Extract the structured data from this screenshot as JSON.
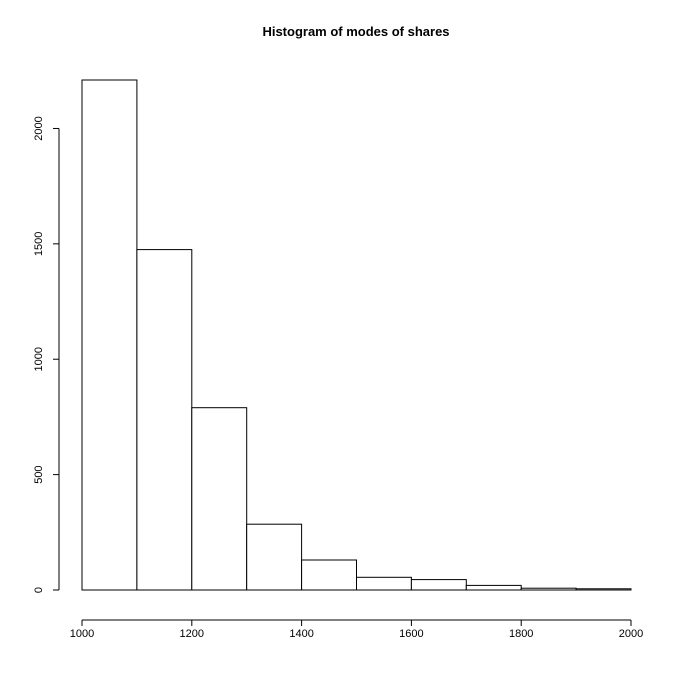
{
  "chart_data": {
    "type": "bar",
    "subtype": "histogram",
    "title": "Histogram of modes of shares",
    "xlabel": "",
    "ylabel": "",
    "bins": [
      {
        "start": 1000,
        "end": 1100,
        "count": 2210
      },
      {
        "start": 1100,
        "end": 1200,
        "count": 1475
      },
      {
        "start": 1200,
        "end": 1300,
        "count": 790
      },
      {
        "start": 1300,
        "end": 1400,
        "count": 285
      },
      {
        "start": 1400,
        "end": 1500,
        "count": 130
      },
      {
        "start": 1500,
        "end": 1600,
        "count": 55
      },
      {
        "start": 1600,
        "end": 1700,
        "count": 45
      },
      {
        "start": 1700,
        "end": 1800,
        "count": 20
      },
      {
        "start": 1800,
        "end": 1900,
        "count": 8
      },
      {
        "start": 1900,
        "end": 2000,
        "count": 5
      }
    ],
    "xlim": [
      1000,
      2000
    ],
    "ylim": [
      0,
      2210
    ],
    "x_ticks": [
      1000,
      1200,
      1400,
      1600,
      1800,
      2000
    ],
    "y_ticks": [
      0,
      500,
      1000,
      1500,
      2000
    ],
    "x_tick_labels": [
      "1000",
      "1200",
      "1400",
      "1600",
      "1800",
      "2000"
    ],
    "y_tick_labels": [
      "0",
      "500",
      "1000",
      "1500",
      "2000"
    ],
    "grid": false,
    "legend": "none",
    "colors": {
      "bar_fill": "#ffffff",
      "bar_stroke": "#000000",
      "background": "#ffffff"
    }
  }
}
